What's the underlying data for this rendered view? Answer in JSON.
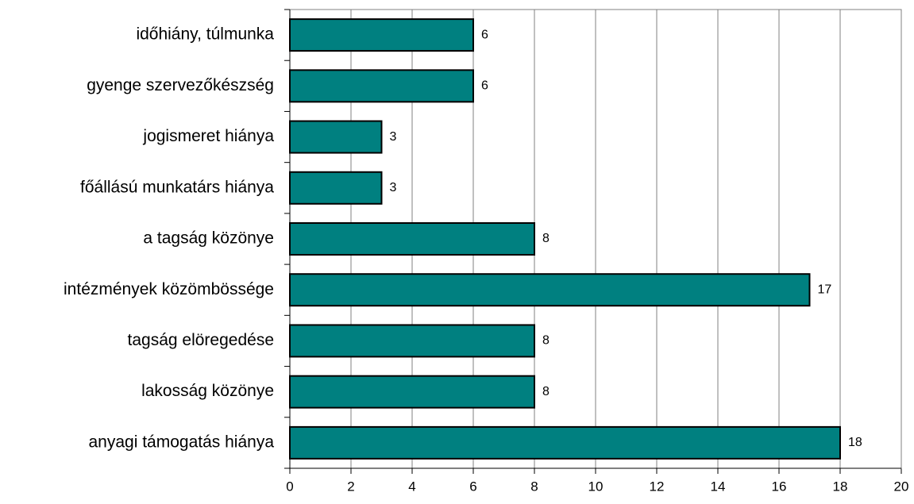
{
  "chart_data": {
    "type": "barh",
    "categories": [
      "időhiány, túlmunka",
      "gyenge szervezőkészség",
      "jogismeret hiánya",
      "főállású munkatárs hiánya",
      "a tagság közönye",
      "intézmények közömbössége",
      "tagság elöregedése",
      "lakosság közönye",
      "anyagi támogatás hiánya"
    ],
    "values": [
      6,
      6,
      3,
      3,
      8,
      17,
      8,
      8,
      18
    ],
    "color": "#008080",
    "xlim": [
      0,
      20
    ],
    "xticks": [
      0,
      2,
      4,
      6,
      8,
      10,
      12,
      14,
      16,
      18,
      20
    ],
    "grid": true
  }
}
